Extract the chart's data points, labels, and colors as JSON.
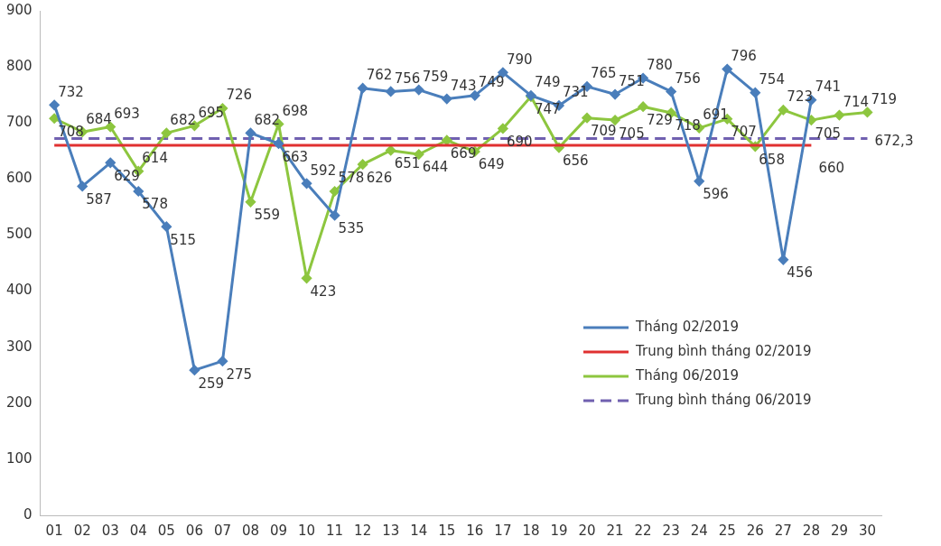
{
  "chart_data": {
    "type": "line",
    "categories": [
      "01",
      "02",
      "03",
      "04",
      "05",
      "06",
      "07",
      "08",
      "09",
      "10",
      "11",
      "12",
      "13",
      "14",
      "15",
      "16",
      "17",
      "18",
      "19",
      "20",
      "21",
      "22",
      "23",
      "24",
      "25",
      "26",
      "27",
      "28",
      "29",
      "30"
    ],
    "ylim": [
      0,
      900
    ],
    "yticks": [
      0,
      100,
      200,
      300,
      400,
      500,
      600,
      700,
      800,
      900
    ],
    "grid": false,
    "legend": "bottom right",
    "series": [
      {
        "name": "Tháng 02/2019",
        "color": "#4a7ebb",
        "marker": "diamond",
        "line_style": "solid",
        "values": [
          732,
          587,
          629,
          578,
          515,
          259,
          275,
          682,
          663,
          592,
          535,
          762,
          756,
          759,
          743,
          749,
          790,
          749,
          731,
          765,
          751,
          780,
          756,
          596,
          796,
          754,
          456,
          741,
          null,
          null
        ],
        "value_labels": [
          "732",
          "587",
          "629",
          "578",
          "515",
          "259",
          "275",
          "682",
          "663",
          "592",
          "535",
          "762",
          "756",
          "759",
          "743",
          "749",
          "790",
          "749",
          "731",
          "765",
          "751",
          "780",
          "756",
          "596",
          "796",
          "754",
          "456",
          "741",
          null,
          null
        ]
      },
      {
        "name": "Trung bình tháng 02/2019",
        "color": "#e03030",
        "marker": "none",
        "line_style": "solid",
        "values": [
          660,
          660,
          660,
          660,
          660,
          660,
          660,
          660,
          660,
          660,
          660,
          660,
          660,
          660,
          660,
          660,
          660,
          660,
          660,
          660,
          660,
          660,
          660,
          660,
          660,
          660,
          660,
          660,
          null,
          null
        ],
        "value_labels": [
          null,
          null,
          null,
          null,
          null,
          null,
          null,
          null,
          null,
          null,
          null,
          null,
          null,
          null,
          null,
          null,
          null,
          null,
          null,
          null,
          null,
          null,
          null,
          null,
          null,
          null,
          null,
          "660",
          null,
          null
        ]
      },
      {
        "name": "Tháng 06/2019",
        "color": "#8dc63f",
        "marker": "diamond",
        "line_style": "solid",
        "values": [
          708,
          684,
          693,
          614,
          682,
          695,
          726,
          559,
          698,
          423,
          578,
          626,
          651,
          644,
          669,
          649,
          690,
          747,
          656,
          709,
          705,
          729,
          718,
          691,
          707,
          658,
          723,
          705,
          714,
          719
        ],
        "value_labels": [
          "708",
          "684",
          "693",
          "614",
          "682",
          "695",
          "726",
          "559",
          "698",
          "423",
          "578",
          "626",
          "651",
          "644",
          "669",
          "649",
          "690",
          "747",
          "656",
          "709",
          "705",
          "729",
          "718",
          "691",
          "707",
          "658",
          "723",
          "705",
          "714",
          "719"
        ]
      },
      {
        "name": "Trung bình tháng 06/2019",
        "color": "#7060b0",
        "marker": "none",
        "line_style": "dashed",
        "values": [
          672.3,
          672.3,
          672.3,
          672.3,
          672.3,
          672.3,
          672.3,
          672.3,
          672.3,
          672.3,
          672.3,
          672.3,
          672.3,
          672.3,
          672.3,
          672.3,
          672.3,
          672.3,
          672.3,
          672.3,
          672.3,
          672.3,
          672.3,
          672.3,
          672.3,
          672.3,
          672.3,
          672.3,
          672.3,
          672.3
        ],
        "value_labels": [
          null,
          null,
          null,
          null,
          null,
          null,
          null,
          null,
          null,
          null,
          null,
          null,
          null,
          null,
          null,
          null,
          null,
          null,
          null,
          null,
          null,
          null,
          null,
          null,
          null,
          null,
          null,
          null,
          null,
          "672,3"
        ]
      }
    ]
  }
}
